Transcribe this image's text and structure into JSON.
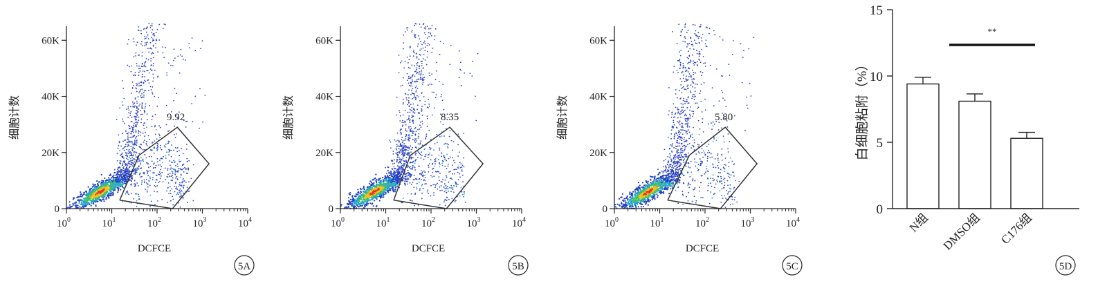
{
  "chart_data": [
    {
      "type": "scatter",
      "panel_label": "5A",
      "xlabel": "DCFCE",
      "ylabel": "细胞计数",
      "x_ticks": [
        "10",
        "10",
        "10",
        "10",
        "10"
      ],
      "x_tick_exponents": [
        "0",
        "1",
        "2",
        "3",
        "4"
      ],
      "x_scale": "log",
      "xlim": [
        1,
        10000
      ],
      "y_ticks": [
        "0",
        "20K",
        "40K",
        "60K"
      ],
      "ylim": [
        0,
        65000
      ],
      "gate_label": "9.92",
      "gate_x": [
        15,
        40,
        280,
        1400,
        220,
        15
      ],
      "gate_y": [
        3000,
        19000,
        29000,
        16000,
        0,
        3000
      ]
    },
    {
      "type": "scatter",
      "panel_label": "5B",
      "xlabel": "DCFCE",
      "ylabel": "细胞计数",
      "x_ticks": [
        "10",
        "10",
        "10",
        "10",
        "10"
      ],
      "x_tick_exponents": [
        "0",
        "1",
        "2",
        "3",
        "4"
      ],
      "x_scale": "log",
      "xlim": [
        1,
        10000
      ],
      "y_ticks": [
        "0",
        "20K",
        "40K",
        "60K"
      ],
      "ylim": [
        0,
        65000
      ],
      "gate_label": "8.35",
      "gate_x": [
        15,
        35,
        260,
        1400,
        220,
        15
      ],
      "gate_y": [
        3000,
        19000,
        29000,
        16000,
        0,
        3000
      ]
    },
    {
      "type": "scatter",
      "panel_label": "5C",
      "xlabel": "DCFCE",
      "ylabel": "细胞计数",
      "x_ticks": [
        "10",
        "10",
        "10",
        "10",
        "10"
      ],
      "x_tick_exponents": [
        "0",
        "1",
        "2",
        "3",
        "4"
      ],
      "x_scale": "log",
      "xlim": [
        1,
        10000
      ],
      "y_ticks": [
        "0",
        "20K",
        "40K",
        "60K"
      ],
      "ylim": [
        0,
        65000
      ],
      "gate_label": "5.80",
      "gate_x": [
        15,
        45,
        280,
        1400,
        220,
        15
      ],
      "gate_y": [
        3000,
        19000,
        29000,
        16000,
        0,
        3000
      ]
    },
    {
      "type": "bar",
      "panel_label": "5D",
      "categories": [
        "N组",
        "DMSO组",
        "C176组"
      ],
      "values": [
        9.4,
        8.1,
        5.3
      ],
      "errors": [
        0.5,
        0.55,
        0.45
      ],
      "ylabel": "白细胞粘附（%）",
      "xlabel": "",
      "ylim": [
        0,
        15
      ],
      "y_ticks": [
        "0",
        "5",
        "10",
        "15"
      ],
      "significance": "**"
    }
  ]
}
